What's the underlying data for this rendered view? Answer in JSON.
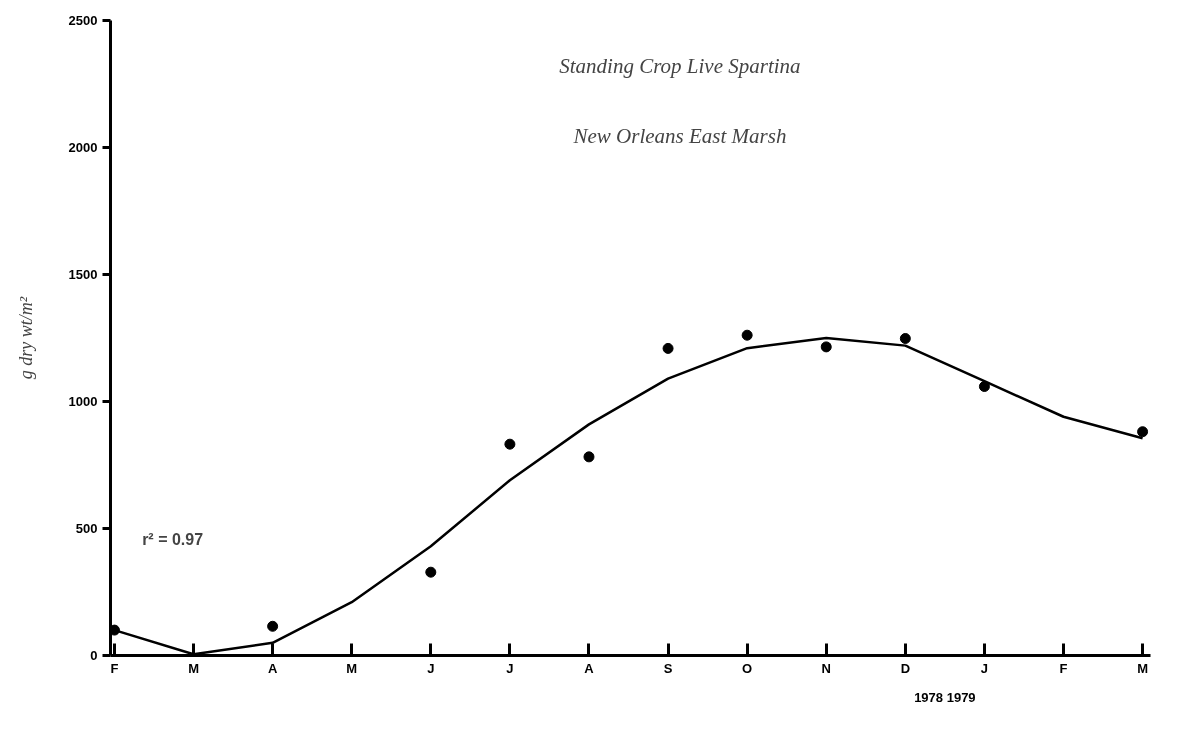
{
  "chart_data": {
    "type": "scatter",
    "title": "Standing Crop Live Spartina",
    "subtitle": "New Orleans East Marsh",
    "ylabel": "g dry wt/m²",
    "categories": [
      "F",
      "M",
      "A",
      "M",
      "J",
      "J",
      "A",
      "S",
      "O",
      "N",
      "D",
      "J",
      "F",
      "M"
    ],
    "series": [
      {
        "color": "#000000",
        "marker": "circle",
        "values": [
          100,
          null,
          115,
          null,
          328,
          832,
          782,
          1209,
          1261,
          1215,
          1248,
          1059,
          null,
          881
        ]
      },
      {
        "type": "line",
        "color": "#000000",
        "line_style": "solid",
        "values": [
          100,
          5,
          50,
          210,
          430,
          690,
          910,
          1090,
          1210,
          1250,
          1220,
          1080,
          940,
          855
        ]
      }
    ],
    "ylim": [
      0,
      2500
    ],
    "yticks": [
      0,
      500,
      1000,
      1500,
      2000,
      2500
    ],
    "annotations": [
      "r² = 0.97",
      "1978 1979"
    ]
  }
}
